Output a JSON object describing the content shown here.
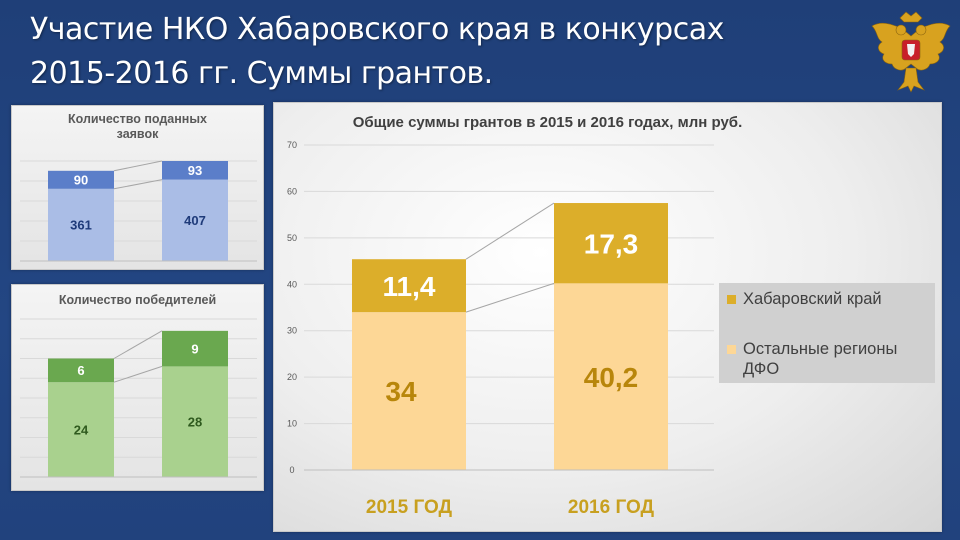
{
  "slide": {
    "title_line1": "Участие НКО Хабаровского края в конкурсах",
    "title_line2": "2015-2016 гг. Суммы грантов."
  },
  "emblem": {
    "icon": "coat-of-arms-icon",
    "colors": {
      "gold": "#d8a21f",
      "red": "#c8202a"
    }
  },
  "chart_data": [
    {
      "type": "bar",
      "stacked": true,
      "title": "Количество поданных заявок",
      "categories": [
        "",
        ""
      ],
      "series": [
        {
          "name": "",
          "values": [
            361,
            407
          ],
          "color": "#aabde6",
          "label_color": "#1f3b7a"
        },
        {
          "name": "",
          "values": [
            90,
            93
          ],
          "color": "#5b7ec9",
          "label_color": "#ffffff"
        }
      ],
      "ylim": [
        0,
        500
      ],
      "grid": true,
      "legend": "none"
    },
    {
      "type": "bar",
      "stacked": true,
      "title": "Количество победителей",
      "categories": [
        "",
        ""
      ],
      "series": [
        {
          "name": "",
          "values": [
            24,
            28
          ],
          "color": "#a9d18e",
          "label_color": "#2f5a1e"
        },
        {
          "name": "",
          "values": [
            6,
            9
          ],
          "color": "#6aa84f",
          "label_color": "#ffffff"
        }
      ],
      "ylim": [
        0,
        40
      ],
      "grid": true,
      "legend": "none"
    },
    {
      "type": "bar",
      "stacked": true,
      "title": "Общие суммы грантов в 2015 и 2016 годах, млн руб.",
      "categories": [
        "2015 ГОД",
        "2016 ГОД"
      ],
      "series": [
        {
          "name": "Остальные регионы ДФО",
          "values": [
            34,
            40.2
          ],
          "labels": [
            "34",
            "40,2"
          ],
          "color": "#fdd796",
          "label_color": "#b8860b"
        },
        {
          "name": "Хабаровский край",
          "values": [
            11.4,
            17.3
          ],
          "labels": [
            "11,4",
            "17,3"
          ],
          "color": "#dcae2a",
          "label_color": "#ffffff"
        }
      ],
      "yticks": [
        "0",
        "10",
        "20",
        "30",
        "40",
        "50",
        "60",
        "70"
      ],
      "ylim": [
        0,
        70
      ],
      "grid": true,
      "legend": "right"
    }
  ]
}
